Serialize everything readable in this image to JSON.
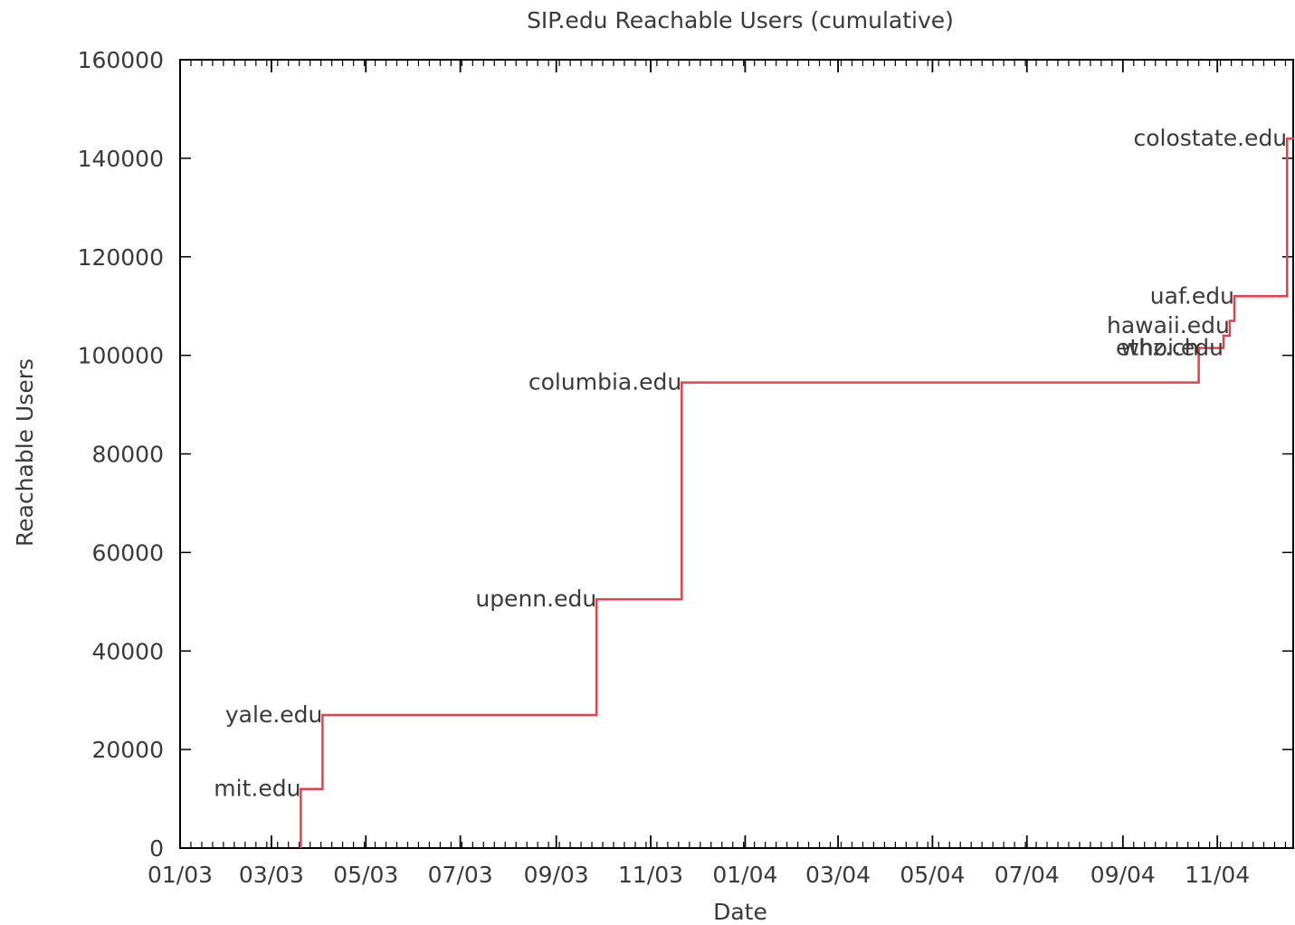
{
  "chart_data": {
    "type": "line",
    "title": "SIP.edu Reachable Users (cumulative)",
    "xlabel": "Date",
    "ylabel": "Reachable Users",
    "x_tick_labels": [
      "01/03",
      "03/03",
      "05/03",
      "07/03",
      "09/03",
      "11/03",
      "01/04",
      "03/04",
      "05/04",
      "07/04",
      "09/04",
      "11/04"
    ],
    "y_ticks": [
      0,
      20000,
      40000,
      60000,
      80000,
      100000,
      120000,
      140000,
      160000
    ],
    "xlim": [
      "2003-01-01",
      "2004-12-20"
    ],
    "ylim": [
      0,
      160000
    ],
    "grid": false,
    "step": true,
    "series_color": "#e8404a",
    "series": [
      {
        "x": [
          "2003-03-20",
          "2003-04-03",
          "2003-09-27",
          "2003-11-21",
          "2004-10-20",
          "2004-11-05",
          "2004-11-09",
          "2004-11-12",
          "2004-12-16",
          "2004-12-20"
        ],
        "values": [
          12000,
          27000,
          50500,
          94500,
          101500,
          104000,
          107000,
          112000,
          144000,
          144000
        ]
      }
    ],
    "annotations": [
      {
        "text": "mit.edu",
        "x": "2003-03-20",
        "y": 12000
      },
      {
        "text": "yale.edu",
        "x": "2003-04-03",
        "y": 27000
      },
      {
        "text": "upenn.edu",
        "x": "2003-09-27",
        "y": 50500
      },
      {
        "text": "columbia.edu",
        "x": "2003-11-21",
        "y": 94500
      },
      {
        "text": "ethz.ch",
        "x": "2004-10-20",
        "y": 101500
      },
      {
        "text": "whoi.edu",
        "x": "2004-11-05",
        "y": 101500
      },
      {
        "text": "hawaii.edu",
        "x": "2004-11-09",
        "y": 106000
      },
      {
        "text": "uaf.edu",
        "x": "2004-11-12",
        "y": 112000
      },
      {
        "text": "colostate.edu",
        "x": "2004-12-16",
        "y": 144000
      }
    ]
  }
}
